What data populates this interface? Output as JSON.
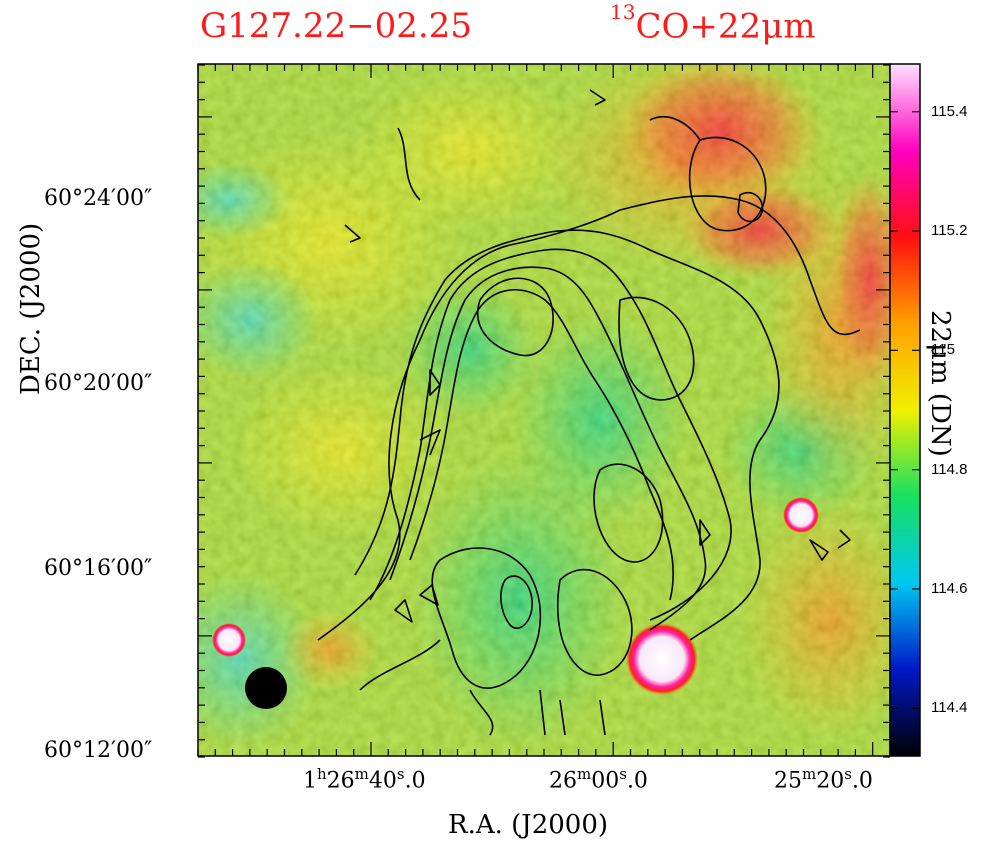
{
  "title": {
    "source": "G127.22−02.25",
    "tracer_sup": "13",
    "tracer_main": "CO+22μm"
  },
  "axes": {
    "xlabel": "R.A. (J2000)",
    "ylabel": "DEC. (J2000)",
    "x_ticks": [
      {
        "main": "1",
        "h": "h",
        "m_val": "26",
        "m": "m",
        "s_val": "40",
        "s": "s",
        "frac": ".0"
      },
      {
        "main": "",
        "h": "",
        "m_val": "26",
        "m": "m",
        "s_val": "00",
        "s": "s",
        "frac": ".0"
      },
      {
        "main": "",
        "h": "",
        "m_val": "25",
        "m": "m",
        "s_val": "20",
        "s": "s",
        "frac": ".0"
      }
    ],
    "y_ticks": [
      "60°24′00″",
      "60°20′00″",
      "60°16′00″",
      "60°12′00″"
    ]
  },
  "colorbar": {
    "label": "22μm (DN)",
    "ticks": [
      "115.4",
      "115.2",
      "115",
      "114.8",
      "114.6",
      "114.4"
    ],
    "range": [
      114.32,
      115.48
    ],
    "colors": [
      "#000000",
      "#0018c8",
      "#00c8f0",
      "#18e060",
      "#f0f000",
      "#ffa000",
      "#ff1010",
      "#ff00c0",
      "#ffe0ff"
    ]
  },
  "beam": {
    "label": ""
  }
}
